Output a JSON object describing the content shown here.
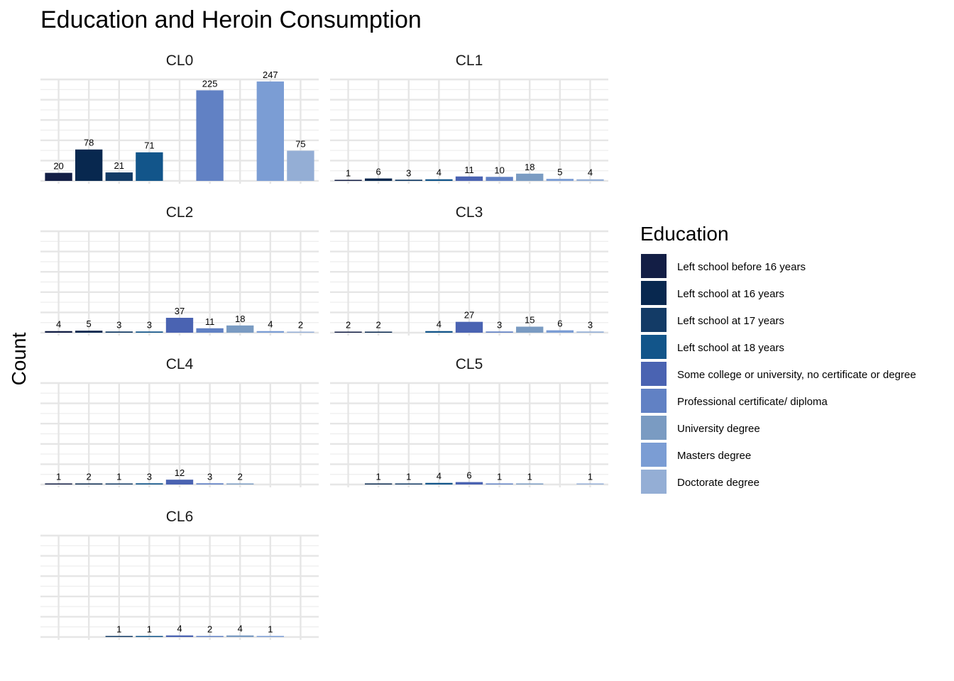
{
  "chart_data": {
    "type": "bar",
    "title": "Education and Heroin Consumption",
    "ylabel": "Count",
    "xlabel": "",
    "ylim": [
      0,
      247
    ],
    "grid": true,
    "legend": {
      "title": "Education",
      "position": "right"
    },
    "categories": [
      "Left school before 16 years",
      "Left school at 16 years",
      "Left school at 17 years",
      "Left school at 18 years",
      "Some college or university, no certificate or degree",
      "Professional certificate/ diploma",
      "University degree",
      "Masters degree",
      "Doctorate degree"
    ],
    "colors": [
      "#131e45",
      "#08284f",
      "#133b66",
      "#12558a",
      "#4a63b2",
      "#6181c4",
      "#7a9bc2",
      "#7b9dd4",
      "#94aed5"
    ],
    "panels": [
      {
        "name": "CL0",
        "values": [
          20,
          78,
          21,
          71,
          null,
          225,
          null,
          247,
          75
        ]
      },
      {
        "name": "CL1",
        "values": [
          1,
          6,
          3,
          4,
          11,
          10,
          18,
          5,
          4
        ]
      },
      {
        "name": "CL2",
        "values": [
          4,
          5,
          3,
          3,
          37,
          11,
          18,
          4,
          2
        ]
      },
      {
        "name": "CL3",
        "values": [
          2,
          2,
          null,
          4,
          27,
          3,
          15,
          6,
          3
        ]
      },
      {
        "name": "CL4",
        "values": [
          1,
          2,
          1,
          3,
          12,
          3,
          2,
          null,
          null
        ]
      },
      {
        "name": "CL5",
        "values": [
          null,
          1,
          1,
          4,
          6,
          1,
          1,
          null,
          1
        ]
      },
      {
        "name": "CL6",
        "values": [
          null,
          null,
          1,
          1,
          4,
          2,
          4,
          1,
          null
        ]
      }
    ]
  }
}
